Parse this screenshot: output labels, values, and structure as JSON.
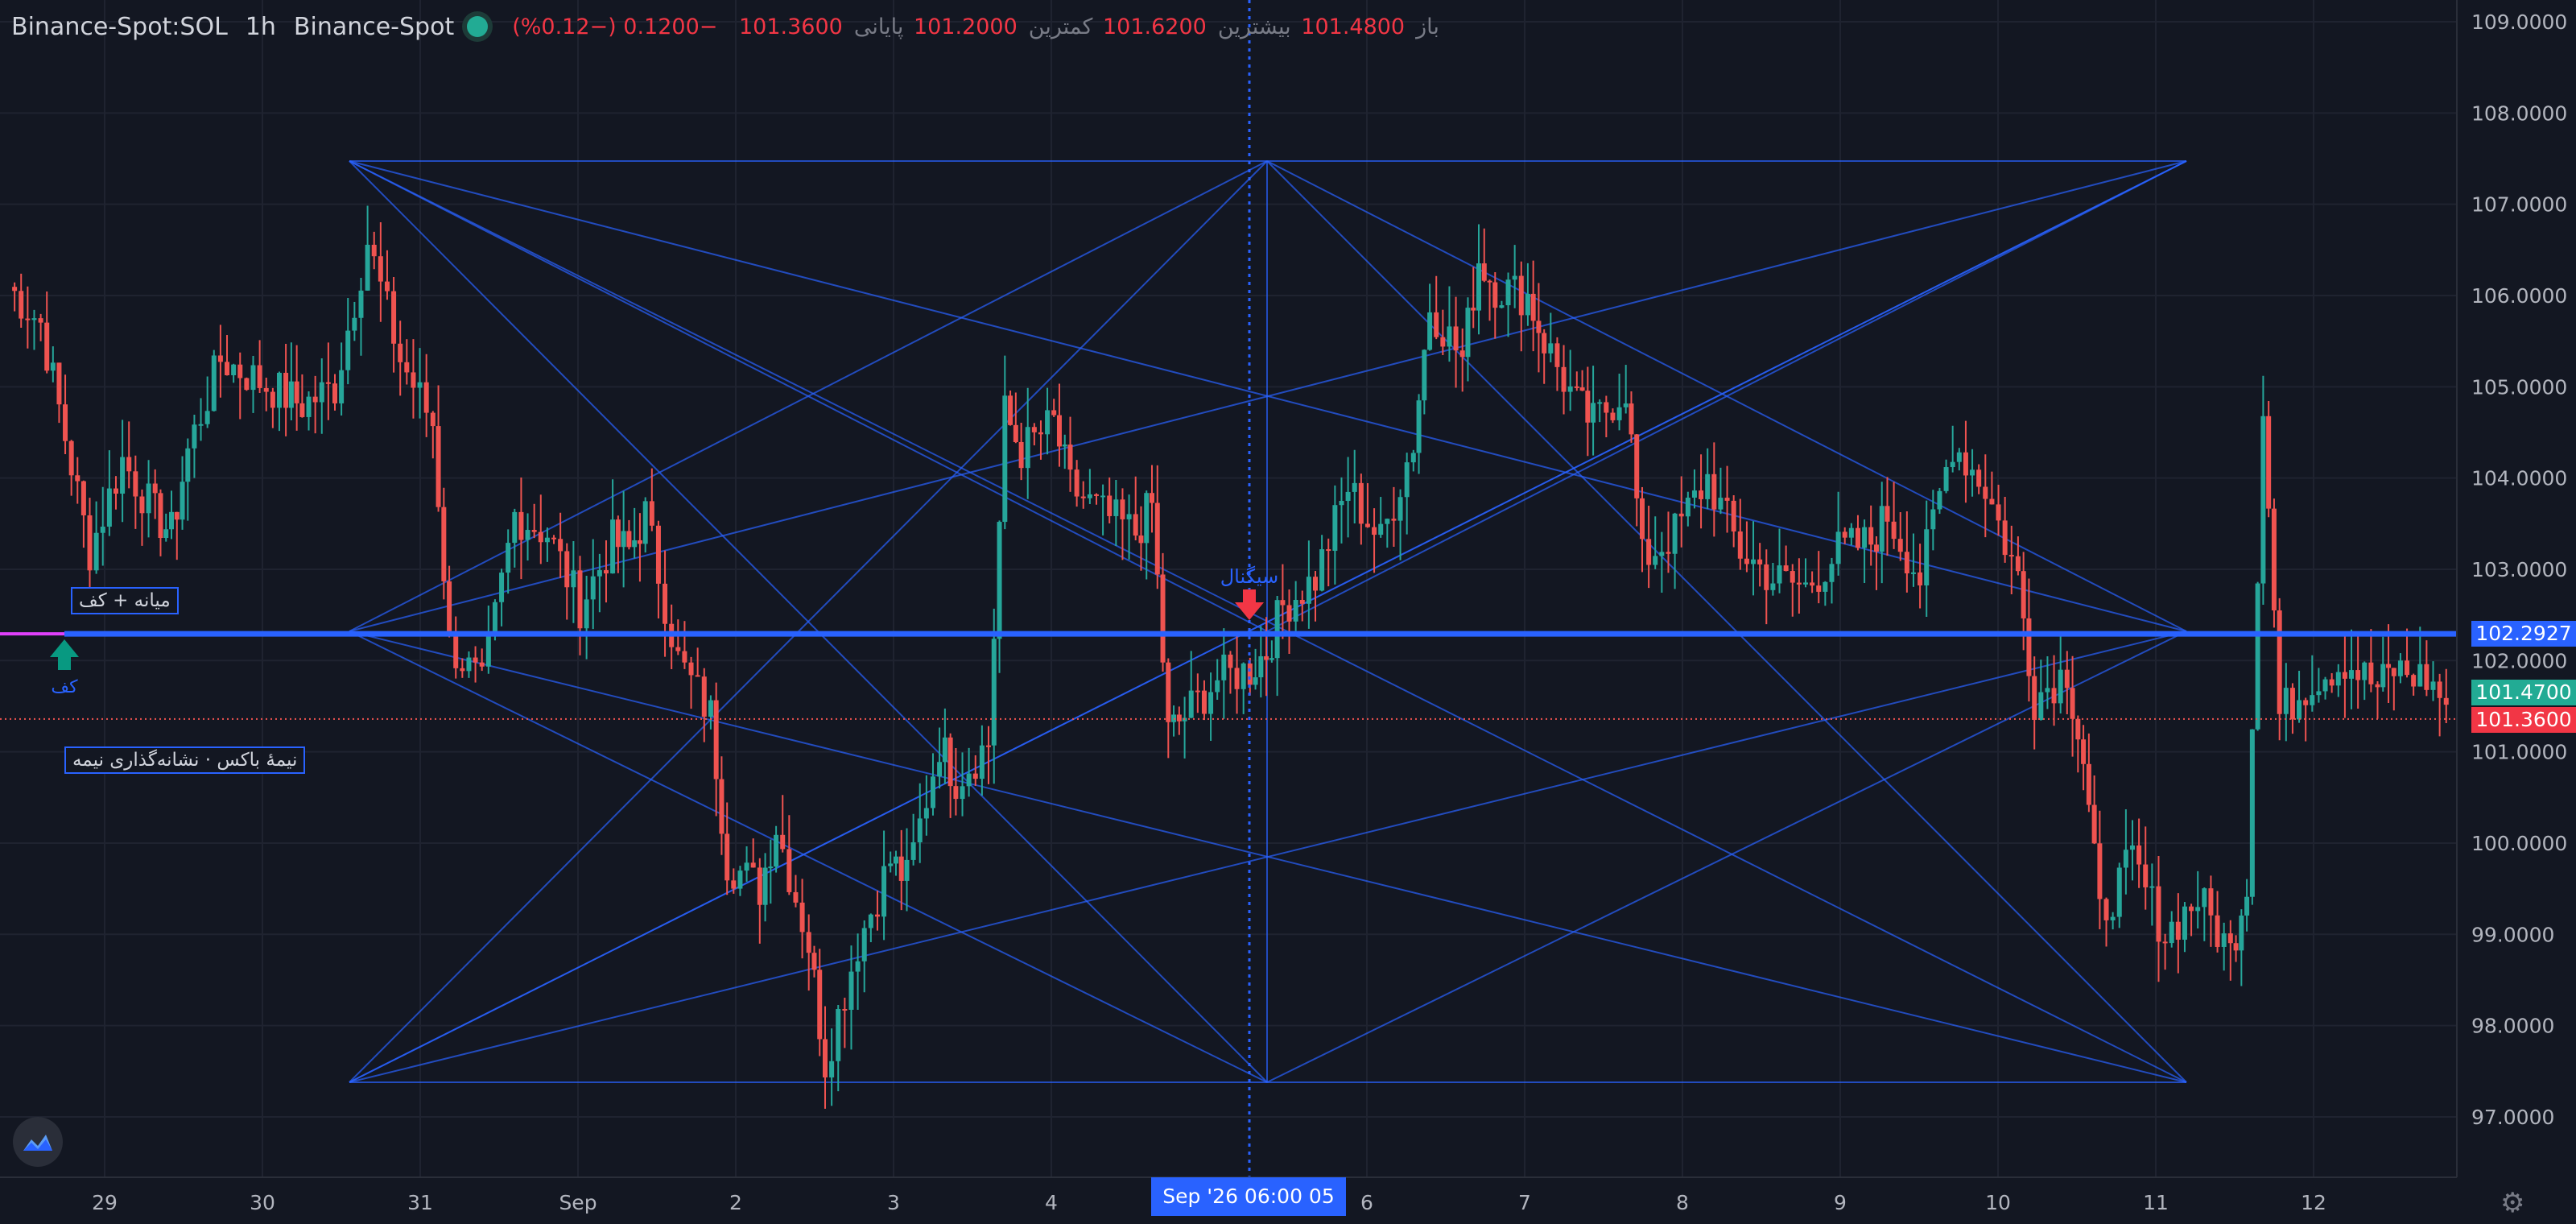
{
  "header": {
    "symbol": "Binance-Spot:SOL",
    "interval": "1h",
    "exchange": "Binance-Spot",
    "open_label": "باز",
    "open": "101.4800",
    "high_label": "بیشترین",
    "high": "101.6200",
    "low_label": "کمترین",
    "low": "101.2000",
    "close_label": "پایانی",
    "close": "101.3600",
    "change": "−0.1200 (−0.12%)"
  },
  "price_axis": {
    "labels": [
      "109.0000",
      "108.0000",
      "107.0000",
      "106.0000",
      "105.0000",
      "104.0000",
      "103.0000",
      "102.0000",
      "101.0000",
      "100.0000",
      "99.0000",
      "98.0000",
      "97.0000"
    ],
    "badge_level": "102.2927",
    "badge_cyan": "101.4700",
    "badge_red": "101.3600"
  },
  "time_axis": {
    "labels": [
      "29",
      "30",
      "31",
      "Sep",
      "2",
      "3",
      "4",
      "6",
      "7",
      "8",
      "9",
      "10",
      "11",
      "12"
    ],
    "crosshair_label": "Sep '26   06:00 05"
  },
  "annotations": {
    "box_top": "میانه + کف",
    "box_bottom": "نیمهٔ باکس · نشانه‌گذاری نیمه",
    "arrow_up_label": "کف",
    "arrow_down_label": "سیگنال"
  },
  "colors": {
    "background": "#131722",
    "up": "#26a69a",
    "down": "#ef5350",
    "pattern_lines": "#2962ff",
    "level_line": "#2962ff",
    "magenta_line": "#e040fb"
  },
  "chart_data": {
    "type": "candlestick",
    "symbol": "Binance-Spot:SOL",
    "interval": "1h",
    "y_range": [
      96.7,
      109.3
    ],
    "x_ticks": [
      "29",
      "30",
      "31",
      "Sep",
      "2",
      "3",
      "4",
      "6",
      "7",
      "8",
      "9",
      "10",
      "11",
      "12"
    ],
    "horizontal_level": 102.2927,
    "last_close": 101.36,
    "close_path": [
      [
        0,
        106.1
      ],
      [
        0.02,
        105.7
      ],
      [
        0.05,
        103.2
      ],
      [
        0.07,
        104.2
      ],
      [
        0.09,
        103.6
      ],
      [
        0.1,
        103.4
      ],
      [
        0.11,
        104.3
      ],
      [
        0.13,
        105.3
      ],
      [
        0.15,
        105.1
      ],
      [
        0.17,
        104.9
      ],
      [
        0.18,
        104.8
      ],
      [
        0.2,
        105.0
      ],
      [
        0.22,
        106.6
      ],
      [
        0.24,
        105.3
      ],
      [
        0.26,
        104.6
      ],
      [
        0.27,
        102.2
      ],
      [
        0.29,
        101.7
      ],
      [
        0.31,
        103.6
      ],
      [
        0.33,
        103.4
      ],
      [
        0.35,
        102.6
      ],
      [
        0.37,
        103.3
      ],
      [
        0.38,
        103.2
      ],
      [
        0.39,
        103.6
      ],
      [
        0.41,
        102.0
      ],
      [
        0.43,
        101.4
      ],
      [
        0.44,
        99.8
      ],
      [
        0.46,
        99.5
      ],
      [
        0.47,
        100.2
      ],
      [
        0.49,
        98.9
      ],
      [
        0.5,
        97.6
      ],
      [
        0.52,
        98.9
      ],
      [
        0.54,
        99.8
      ],
      [
        0.55,
        99.6
      ],
      [
        0.57,
        101.1
      ],
      [
        0.58,
        100.7
      ],
      [
        0.6,
        101.1
      ],
      [
        0.61,
        104.7
      ],
      [
        0.62,
        104.3
      ],
      [
        0.64,
        104.6
      ],
      [
        0.65,
        103.9
      ],
      [
        0.67,
        103.6
      ],
      [
        0.69,
        103.4
      ],
      [
        0.7,
        103.7
      ],
      [
        0.71,
        101.2
      ],
      [
        0.72,
        101.4
      ],
      [
        0.74,
        101.8
      ],
      [
        0.76,
        101.9
      ],
      [
        0.77,
        102.1
      ],
      [
        0.78,
        102.6
      ],
      [
        0.8,
        102.9
      ],
      [
        0.82,
        103.9
      ],
      [
        0.84,
        103.3
      ],
      [
        0.86,
        104.4
      ],
      [
        0.87,
        105.9
      ],
      [
        0.89,
        105.3
      ],
      [
        0.9,
        106.4
      ],
      [
        0.91,
        106.1
      ],
      [
        0.93,
        106.0
      ],
      [
        0.94,
        105.5
      ],
      [
        0.96,
        104.8
      ],
      [
        0.97,
        104.6
      ],
      [
        0.99,
        105.0
      ],
      [
        1.0,
        103.1
      ],
      [
        1.02,
        103.4
      ],
      [
        1.04,
        104.0
      ],
      [
        1.06,
        103.2
      ],
      [
        1.08,
        102.9
      ],
      [
        1.1,
        102.8
      ],
      [
        1.12,
        103.2
      ],
      [
        1.14,
        103.3
      ],
      [
        1.15,
        103.6
      ],
      [
        1.17,
        102.9
      ],
      [
        1.19,
        104.4
      ],
      [
        1.21,
        103.9
      ],
      [
        1.23,
        102.9
      ],
      [
        1.24,
        101.6
      ],
      [
        1.26,
        101.9
      ],
      [
        1.27,
        100.9
      ],
      [
        1.28,
        99.2
      ],
      [
        1.3,
        99.8
      ],
      [
        1.32,
        99.0
      ],
      [
        1.34,
        99.4
      ],
      [
        1.36,
        98.8
      ],
      [
        1.37,
        99.6
      ],
      [
        1.38,
        104.8
      ],
      [
        1.39,
        101.4
      ],
      [
        1.41,
        101.8
      ],
      [
        1.43,
        102.0
      ],
      [
        1.45,
        101.7
      ],
      [
        1.46,
        101.9
      ],
      [
        1.48,
        101.8
      ],
      [
        1.5,
        101.36
      ]
    ]
  }
}
